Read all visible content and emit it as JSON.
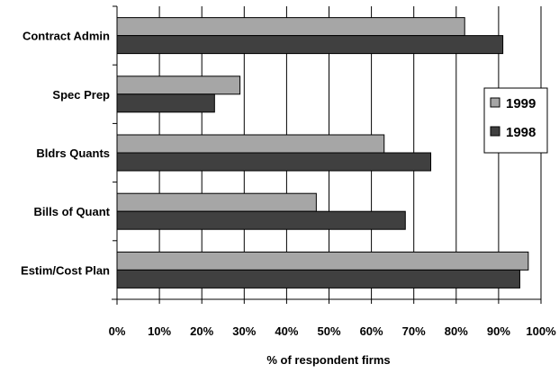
{
  "chart_data": {
    "type": "bar",
    "orientation": "horizontal",
    "categories": [
      "Contract Admin",
      "Spec Prep",
      "Bldrs Quants",
      "Bills of Quant",
      "Estim/Cost Plan"
    ],
    "series": [
      {
        "name": "1999",
        "color": "#a6a6a6",
        "values": [
          82,
          29,
          63,
          47,
          97
        ]
      },
      {
        "name": "1998",
        "color": "#404040",
        "values": [
          91,
          23,
          74,
          68,
          95
        ]
      }
    ],
    "xlabel": "% of respondent firms",
    "ylabel": "",
    "xlim": [
      0,
      100
    ],
    "xticks": [
      "0%",
      "10%",
      "20%",
      "30%",
      "40%",
      "50%",
      "60%",
      "70%",
      "80%",
      "90%",
      "100%"
    ],
    "grid": "vertical",
    "legend": "right"
  }
}
